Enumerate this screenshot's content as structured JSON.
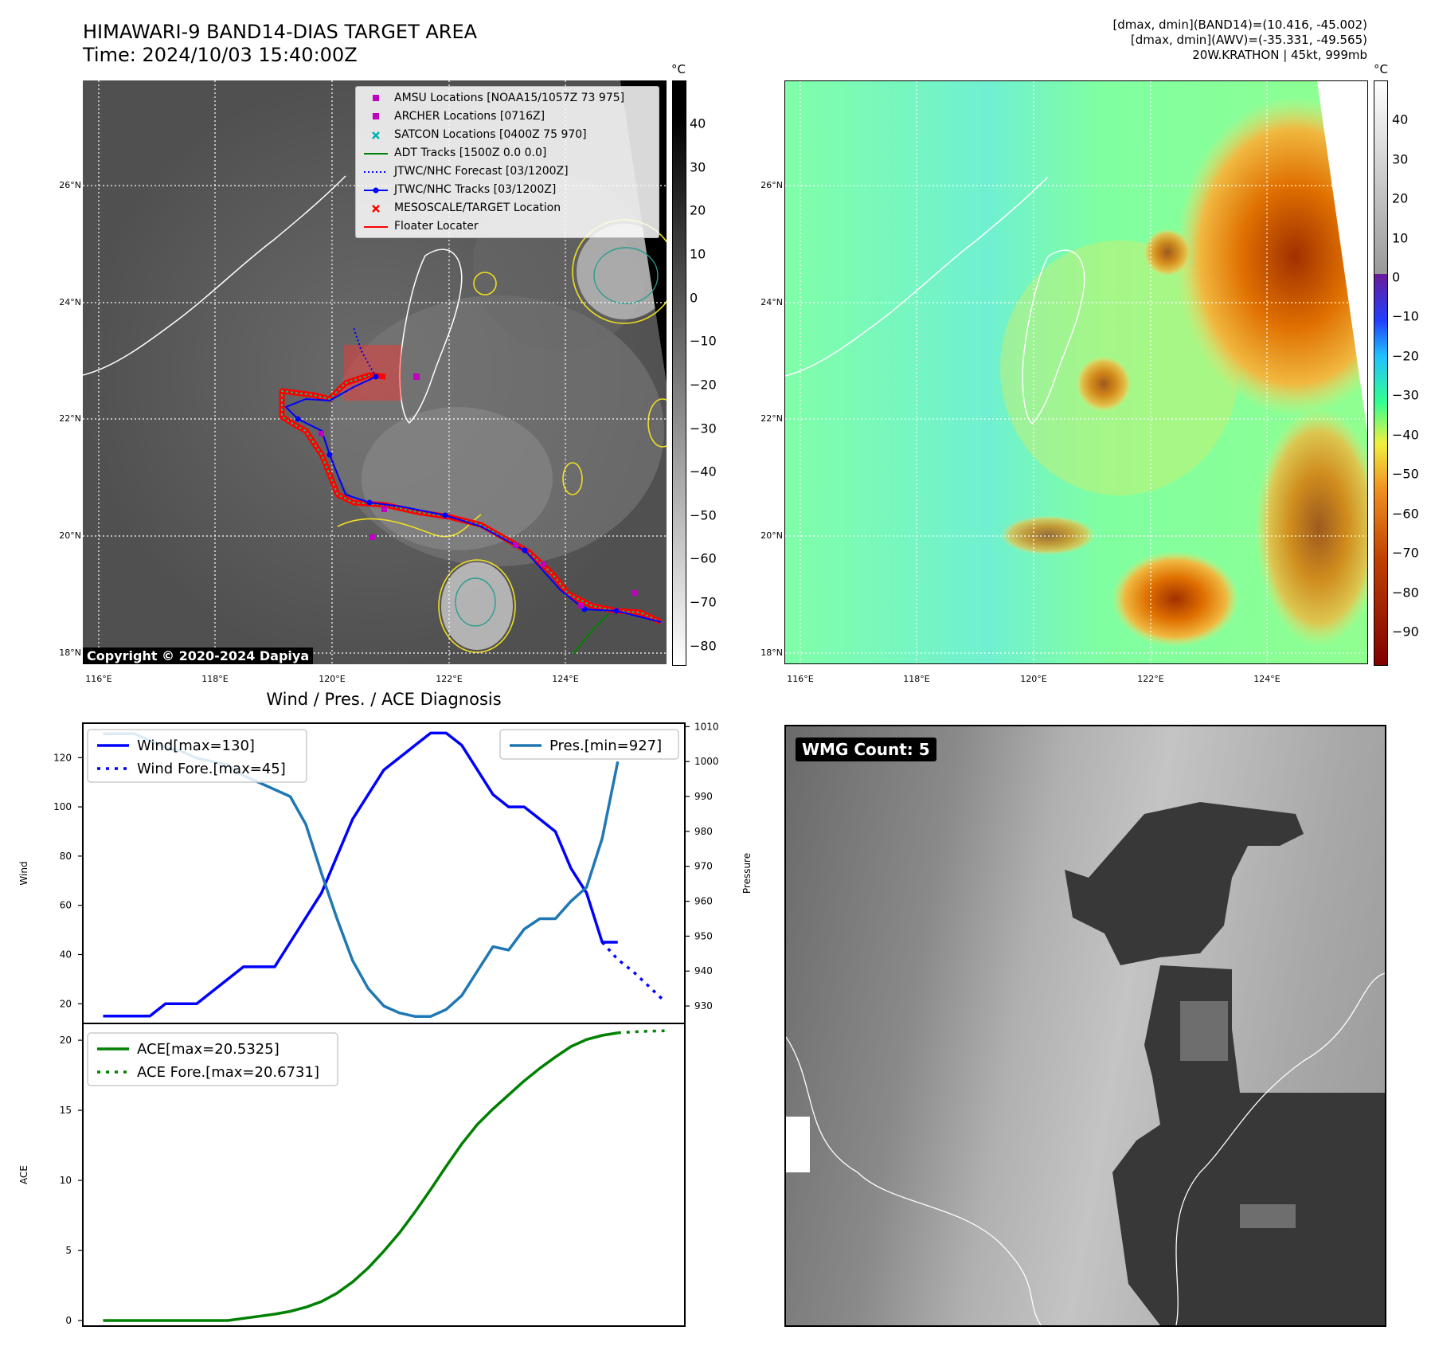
{
  "header": {
    "title_line1": "HIMAWARI-9 BAND14-DIAS TARGET AREA",
    "title_line2": "Time: 2024/10/03 15:40:00Z",
    "right_line1": "[dmax, dmin](BAND14)=(10.416, -45.002)",
    "right_line2": "[dmax, dmin](AWV)=(-35.331, -49.565)",
    "right_line3": "20W.KRATHON | 45kt, 999mb"
  },
  "map": {
    "lat_labels": [
      "26°N",
      "24°N",
      "22°N",
      "20°N",
      "18°N"
    ],
    "lon_labels": [
      "116°E",
      "118°E",
      "120°E",
      "122°E",
      "124°E"
    ],
    "copyright": "Copyright © 2020-2024 Dapiya",
    "legend": [
      {
        "label": "AMSU Locations [NOAA15/1057Z 73 975]",
        "marker": "square",
        "color": "#c000c0"
      },
      {
        "label": "ARCHER Locations [0716Z]",
        "marker": "square",
        "color": "#c000c0"
      },
      {
        "label": "SATCON Locations [0400Z 75 970]",
        "marker": "x",
        "color": "#00b0b0"
      },
      {
        "label": "ADT Tracks [1500Z 0.0 0.0]",
        "marker": "line",
        "color": "#008000"
      },
      {
        "label": "JTWC/NHC Forecast [03/1200Z]",
        "marker": "dotted",
        "color": "#0000ff"
      },
      {
        "label": "JTWC/NHC Tracks [03/1200Z]",
        "marker": "line-dot",
        "color": "#0000ff"
      },
      {
        "label": "MESOSCALE/TARGET Location",
        "marker": "x",
        "color": "#ff0000"
      },
      {
        "label": "Floater Locater",
        "marker": "line",
        "color": "#ff0000"
      }
    ]
  },
  "colorbar_gray": {
    "unit": "°C",
    "ticks": [
      "40",
      "30",
      "20",
      "10",
      "0",
      "−10",
      "−20",
      "−30",
      "−40",
      "−50",
      "−60",
      "−70",
      "−80"
    ]
  },
  "colorbar_color": {
    "unit": "°C",
    "ticks": [
      "40",
      "30",
      "20",
      "10",
      "0",
      "−10",
      "−20",
      "−30",
      "−40",
      "−50",
      "−60",
      "−70",
      "−80",
      "−90"
    ]
  },
  "wmg": {
    "label": "WMG Count: 5"
  },
  "chart_data": [
    {
      "type": "line",
      "title": "Wind / Pres. / ACE Diagnosis",
      "ylabel": "Wind",
      "ylabel_right": "Pressure",
      "ylim": [
        12,
        134
      ],
      "ylim_right": [
        925,
        1011
      ],
      "yticks": [
        20,
        40,
        60,
        80,
        100,
        120
      ],
      "yticks_right": [
        930,
        940,
        950,
        960,
        970,
        980,
        990,
        1000,
        1010
      ],
      "series": [
        {
          "name": "Wind[max=130]",
          "color": "#0000ff",
          "style": "solid",
          "axis": "left",
          "x": [
            0,
            1,
            2,
            3,
            4,
            5,
            6,
            7,
            8,
            9,
            10,
            11,
            12,
            13,
            14,
            15,
            16,
            17,
            18,
            19,
            20,
            21,
            22,
            23,
            24,
            25,
            26,
            27,
            28,
            29,
            30,
            31,
            32,
            33
          ],
          "values": [
            15,
            15,
            15,
            15,
            20,
            20,
            20,
            25,
            30,
            35,
            35,
            35,
            45,
            55,
            65,
            80,
            95,
            105,
            115,
            120,
            125,
            130,
            130,
            125,
            115,
            105,
            100,
            100,
            95,
            90,
            75,
            65,
            45,
            45
          ]
        },
        {
          "name": "Wind Fore.[max=45]",
          "color": "#0000ff",
          "style": "dotted",
          "axis": "left",
          "x": [
            32,
            33,
            34,
            35,
            36
          ],
          "values": [
            45,
            38,
            33,
            27,
            21
          ]
        },
        {
          "name": "Pres.[min=927]",
          "color": "#1f77b4",
          "style": "solid",
          "axis": "right",
          "x": [
            0,
            1,
            2,
            3,
            4,
            5,
            6,
            7,
            8,
            9,
            10,
            11,
            12,
            13,
            14,
            15,
            16,
            17,
            18,
            19,
            20,
            21,
            22,
            23,
            24,
            25,
            26,
            27,
            28,
            29,
            30,
            31,
            32,
            33
          ],
          "values": [
            1008,
            1008,
            1008,
            1006,
            1004,
            1003,
            1001,
            1000,
            999,
            996,
            994,
            992,
            990,
            982,
            968,
            955,
            943,
            935,
            930,
            928,
            927,
            927,
            929,
            933,
            940,
            947,
            946,
            952,
            955,
            955,
            960,
            964,
            978,
            1000
          ]
        }
      ]
    },
    {
      "type": "line",
      "ylabel": "ACE",
      "ylim": [
        -0.4,
        21.2
      ],
      "yticks": [
        0,
        5,
        10,
        15,
        20
      ],
      "series": [
        {
          "name": "ACE[max=20.5325]",
          "color": "#008000",
          "style": "solid",
          "x": [
            0,
            1,
            2,
            3,
            4,
            5,
            6,
            7,
            8,
            9,
            10,
            11,
            12,
            13,
            14,
            15,
            16,
            17,
            18,
            19,
            20,
            21,
            22,
            23,
            24,
            25,
            26,
            27,
            28,
            29,
            30,
            31,
            32,
            33
          ],
          "values": [
            0,
            0,
            0,
            0,
            0,
            0,
            0,
            0,
            0,
            0.15,
            0.3,
            0.45,
            0.65,
            0.95,
            1.35,
            1.95,
            2.75,
            3.75,
            4.95,
            6.25,
            7.75,
            9.35,
            11.0,
            12.6,
            14.0,
            15.1,
            16.1,
            17.1,
            18.0,
            18.8,
            19.55,
            20.05,
            20.35,
            20.53
          ]
        },
        {
          "name": "ACE Fore.[max=20.6731]",
          "color": "#008000",
          "style": "dotted",
          "x": [
            33,
            34,
            35,
            36
          ],
          "values": [
            20.53,
            20.6,
            20.65,
            20.67
          ]
        }
      ]
    }
  ]
}
